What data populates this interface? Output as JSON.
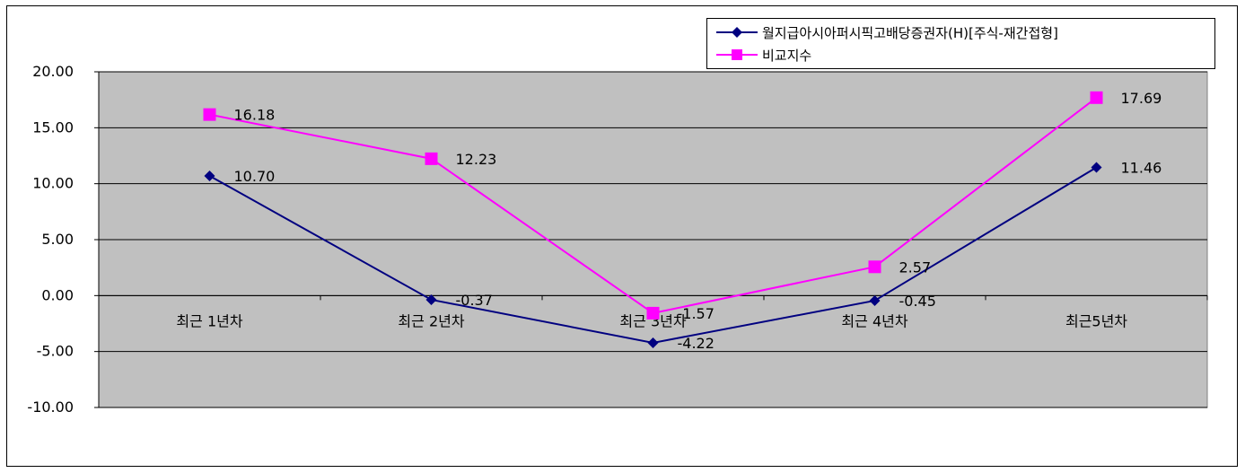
{
  "chart_data": {
    "type": "line",
    "categories": [
      "최근 1년차",
      "최근 2년차",
      "최근 3년차",
      "최근 4년차",
      "최근5년차"
    ],
    "ylim": [
      -10,
      20
    ],
    "yticks": [
      "20.00",
      "15.00",
      "10.00",
      "5.00",
      "0.00",
      "-5.00",
      "-10.00"
    ],
    "grid": true,
    "legend_position": "top-right",
    "series": [
      {
        "name": "월지급아시아퍼시픽고배당증권자(H)[주식-재간접형]",
        "values": [
          10.7,
          -0.37,
          -4.22,
          -0.45,
          11.46
        ],
        "labels": [
          "10.70",
          "-0.37",
          "-4.22",
          "-0.45",
          "11.46"
        ],
        "color": "#000080",
        "marker": "diamond"
      },
      {
        "name": "비교지수",
        "values": [
          16.18,
          12.23,
          -1.57,
          2.57,
          17.69
        ],
        "labels": [
          "16.18",
          "12.23",
          "-1.57",
          "2.57",
          "17.69"
        ],
        "color": "#ff00ff",
        "marker": "square"
      }
    ],
    "plot_background": "#c0c0c0"
  }
}
